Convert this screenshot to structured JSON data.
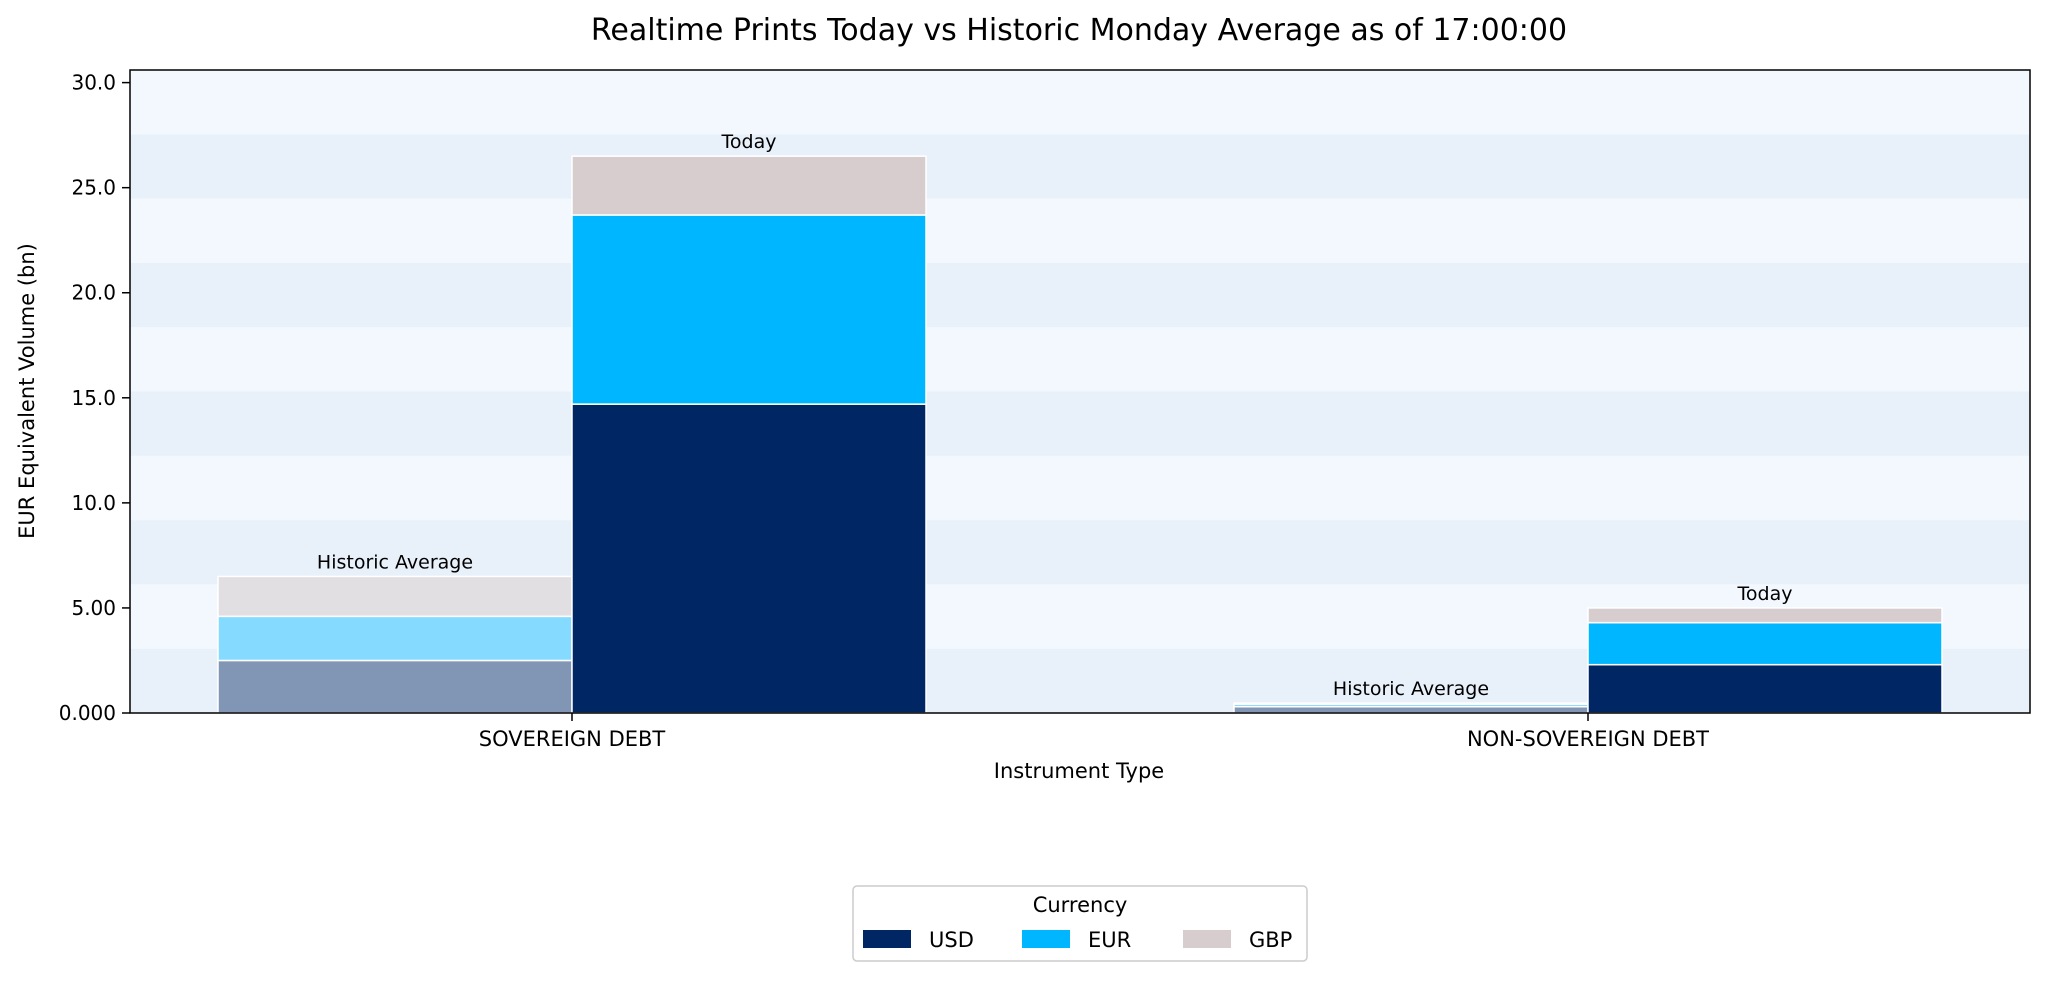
{
  "chart_data": {
    "type": "bar",
    "title": "Realtime Prints Today vs Historic Monday Average as of 17:00:00",
    "xlabel": "Instrument Type",
    "ylabel": "EUR Equivalent Volume (bn)",
    "ylim": [
      0,
      30.6
    ],
    "yticks": [
      0,
      5,
      10,
      15,
      20,
      25,
      30
    ],
    "ytick_labels": [
      "0.000",
      "5.00",
      "10.0",
      "15.0",
      "20.0",
      "25.0",
      "30.0"
    ],
    "grid": "horizontal alternating bands",
    "categories": [
      "SOVEREIGN DEBT",
      "NON-SOVEREIGN DEBT"
    ],
    "groups": [
      {
        "label": "Historic Average",
        "style": "faded",
        "series": [
          {
            "name": "USD",
            "values": [
              2.5,
              0.3
            ]
          },
          {
            "name": "EUR",
            "values": [
              2.1,
              0.12
            ]
          },
          {
            "name": "GBP",
            "values": [
              1.9,
              0.05
            ]
          }
        ]
      },
      {
        "label": "Today",
        "style": "solid",
        "series": [
          {
            "name": "USD",
            "values": [
              14.7,
              2.3
            ]
          },
          {
            "name": "EUR",
            "values": [
              9.0,
              2.0
            ]
          },
          {
            "name": "GBP",
            "values": [
              2.8,
              0.7
            ]
          }
        ]
      }
    ],
    "legend": {
      "title": "Currency",
      "placement": "bottom-center",
      "entries": [
        {
          "name": "USD",
          "color": "#002664"
        },
        {
          "name": "EUR",
          "color": "#00B6FF"
        },
        {
          "name": "GBP",
          "color": "#D8CDCE"
        }
      ]
    },
    "colors": {
      "solid": {
        "USD": "#002664",
        "EUR": "#00B6FF",
        "GBP": "#D8CDCE"
      },
      "faded": {
        "USD": "#8196B5",
        "EUR": "#85DAFF",
        "GBP": "#E2DFE2"
      },
      "band_light": "#F3F8FE",
      "band_dark": "#E8F0FA"
    }
  }
}
